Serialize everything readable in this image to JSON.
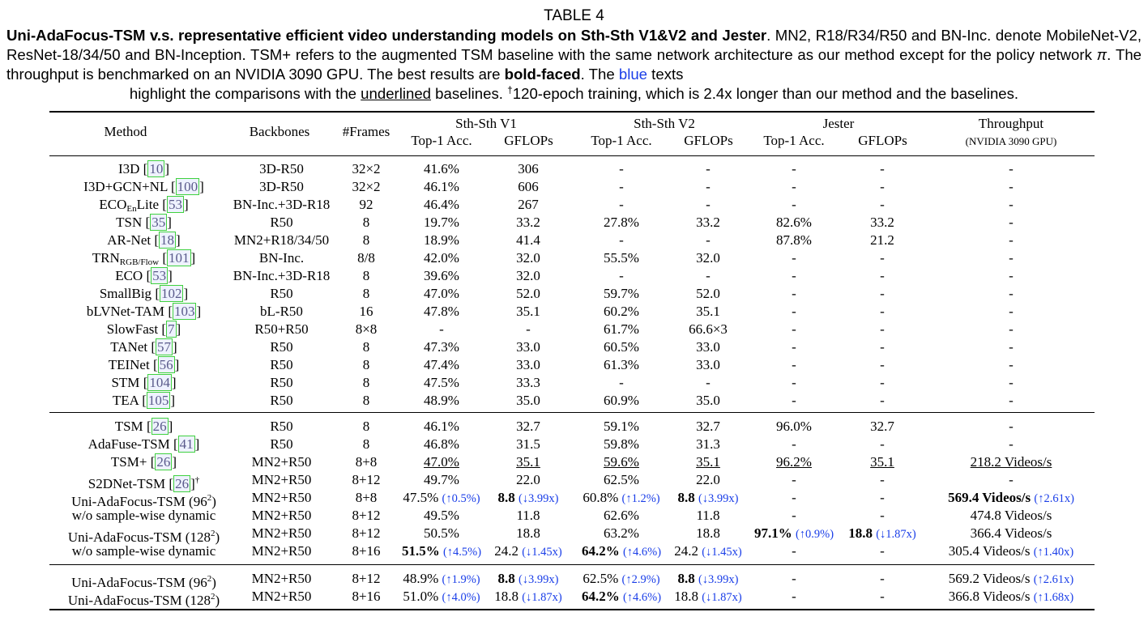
{
  "table_label": "TABLE 4",
  "caption": {
    "bold_lead": "Uni-AdaFocus-TSM v.s. representative efficient video understanding models on Sth-Sth V1&V2 and Jester",
    "p1": ". MN2, R18/R34/R50 and BN-Inc. denote MobileNet-V2, ResNet-18/34/50 and BN-Inception. TSM+ refers to the augmented TSM baseline with the same network architecture as our method except for the policy network ",
    "pi": "π",
    "p2": ". The throughput is benchmarked on an NVIDIA 3090 GPU. The best results are ",
    "bold_faced": "bold-faced",
    "p3": ". The ",
    "blue_word": "blue",
    "p4": " texts",
    "line4a": "highlight the comparisons with the ",
    "underlined": "underlined",
    "line4b": " baselines. ",
    "dagger": "†",
    "line4c": "120-epoch training, which is 2.4x longer than our method and the baselines."
  },
  "header": {
    "method": "Method",
    "backbones": "Backbones",
    "frames": "#Frames",
    "groups": [
      "Sth-Sth V1",
      "Sth-Sth V2",
      "Jester",
      "Throughput"
    ],
    "throughput_sub": "(NVIDIA 3090 GPU)",
    "top1": "Top-1 Acc.",
    "gflops": "GFLOPs"
  },
  "sections": [
    {
      "rows": [
        {
          "m": "I3D",
          "sub": "",
          "post": "",
          "ref": "10",
          "bb": "3D-R50",
          "fr": "32×2",
          "c": [
            [
              "41.6%"
            ],
            [
              "306"
            ],
            [
              "-"
            ],
            [
              "-"
            ],
            [
              "-"
            ],
            [
              "-"
            ],
            [
              "-"
            ]
          ]
        },
        {
          "m": "I3D+GCN+NL",
          "sub": "",
          "post": "",
          "ref": "100",
          "bb": "3D-R50",
          "fr": "32×2",
          "c": [
            [
              "46.1%"
            ],
            [
              "606"
            ],
            [
              "-"
            ],
            [
              "-"
            ],
            [
              "-"
            ],
            [
              "-"
            ],
            [
              "-"
            ]
          ]
        },
        {
          "m": "ECO",
          "sub": "En",
          "post": "Lite",
          "ref": "53",
          "bb": "BN-Inc.+3D-R18",
          "fr": "92",
          "c": [
            [
              "46.4%"
            ],
            [
              "267"
            ],
            [
              "-"
            ],
            [
              "-"
            ],
            [
              "-"
            ],
            [
              "-"
            ],
            [
              "-"
            ]
          ]
        },
        {
          "m": "TSN",
          "sub": "",
          "post": "",
          "ref": "35",
          "bb": "R50",
          "fr": "8",
          "c": [
            [
              "19.7%"
            ],
            [
              "33.2"
            ],
            [
              "27.8%"
            ],
            [
              "33.2"
            ],
            [
              "82.6%"
            ],
            [
              "33.2"
            ],
            [
              "-"
            ]
          ]
        },
        {
          "m": "AR-Net",
          "sub": "",
          "post": "",
          "ref": "18",
          "bb": "MN2+R18/34/50",
          "fr": "8",
          "c": [
            [
              "18.9%"
            ],
            [
              "41.4"
            ],
            [
              "-"
            ],
            [
              "-"
            ],
            [
              "87.8%"
            ],
            [
              "21.2"
            ],
            [
              "-"
            ]
          ]
        },
        {
          "m": "TRN",
          "sub": "RGB/Flow",
          "post": "",
          "ref": "101",
          "bb": "BN-Inc.",
          "fr": "8/8",
          "c": [
            [
              "42.0%"
            ],
            [
              "32.0"
            ],
            [
              "55.5%"
            ],
            [
              "32.0"
            ],
            [
              "-"
            ],
            [
              "-"
            ],
            [
              "-"
            ]
          ]
        },
        {
          "m": "ECO",
          "sub": "",
          "post": "",
          "ref": "53",
          "bb": "BN-Inc.+3D-R18",
          "fr": "8",
          "c": [
            [
              "39.6%"
            ],
            [
              "32.0"
            ],
            [
              "-"
            ],
            [
              "-"
            ],
            [
              "-"
            ],
            [
              "-"
            ],
            [
              "-"
            ]
          ]
        },
        {
          "m": "SmallBig",
          "sub": "",
          "post": "",
          "ref": "102",
          "bb": "R50",
          "fr": "8",
          "c": [
            [
              "47.0%"
            ],
            [
              "52.0"
            ],
            [
              "59.7%"
            ],
            [
              "52.0"
            ],
            [
              "-"
            ],
            [
              "-"
            ],
            [
              "-"
            ]
          ]
        },
        {
          "m": "bLVNet-TAM",
          "sub": "",
          "post": "",
          "ref": "103",
          "bb": "bL-R50",
          "fr": "16",
          "c": [
            [
              "47.8%"
            ],
            [
              "35.1"
            ],
            [
              "60.2%"
            ],
            [
              "35.1"
            ],
            [
              "-"
            ],
            [
              "-"
            ],
            [
              "-"
            ]
          ]
        },
        {
          "m": "SlowFast",
          "sub": "",
          "post": "",
          "ref": "7",
          "bb": "R50+R50",
          "fr": "8×8",
          "c": [
            [
              "-"
            ],
            [
              "-"
            ],
            [
              "61.7%"
            ],
            [
              "66.6×3"
            ],
            [
              "-"
            ],
            [
              "-"
            ],
            [
              "-"
            ]
          ]
        },
        {
          "m": "TANet",
          "sub": "",
          "post": "",
          "ref": "57",
          "bb": "R50",
          "fr": "8",
          "c": [
            [
              "47.3%"
            ],
            [
              "33.0"
            ],
            [
              "60.5%"
            ],
            [
              "33.0"
            ],
            [
              "-"
            ],
            [
              "-"
            ],
            [
              "-"
            ]
          ]
        },
        {
          "m": "TEINet",
          "sub": "",
          "post": "",
          "ref": "56",
          "bb": "R50",
          "fr": "8",
          "c": [
            [
              "47.4%"
            ],
            [
              "33.0"
            ],
            [
              "61.3%"
            ],
            [
              "33.0"
            ],
            [
              "-"
            ],
            [
              "-"
            ],
            [
              "-"
            ]
          ]
        },
        {
          "m": "STM",
          "sub": "",
          "post": "",
          "ref": "104",
          "bb": "R50",
          "fr": "8",
          "c": [
            [
              "47.5%"
            ],
            [
              "33.3"
            ],
            [
              "-"
            ],
            [
              "-"
            ],
            [
              "-"
            ],
            [
              "-"
            ],
            [
              "-"
            ]
          ]
        },
        {
          "m": "TEA",
          "sub": "",
          "post": "",
          "ref": "105",
          "bb": "R50",
          "fr": "8",
          "c": [
            [
              "48.9%"
            ],
            [
              "35.0"
            ],
            [
              "60.9%"
            ],
            [
              "35.0"
            ],
            [
              "-"
            ],
            [
              "-"
            ],
            [
              "-"
            ]
          ]
        }
      ]
    },
    {
      "rows": [
        {
          "m": "TSM",
          "sub": "",
          "post": "",
          "ref": "26",
          "bb": "R50",
          "fr": "8",
          "c": [
            [
              "46.1%"
            ],
            [
              "32.7"
            ],
            [
              "59.1%"
            ],
            [
              "32.7"
            ],
            [
              "96.0%"
            ],
            [
              "32.7"
            ],
            [
              "-"
            ]
          ]
        },
        {
          "m": "AdaFuse-TSM",
          "sub": "",
          "post": "",
          "ref": "41",
          "bb": "R50",
          "fr": "8",
          "c": [
            [
              "46.8%"
            ],
            [
              "31.5"
            ],
            [
              "59.8%"
            ],
            [
              "31.3"
            ],
            [
              "-"
            ],
            [
              "-"
            ],
            [
              "-"
            ]
          ]
        },
        {
          "m": "TSM+",
          "sub": "",
          "post": "",
          "ref": "26",
          "bb": "MN2+R50",
          "fr": "8+8",
          "c": [
            [
              "47.0%",
              "",
              "u"
            ],
            [
              "35.1",
              "",
              "u"
            ],
            [
              "59.6%",
              "",
              "u"
            ],
            [
              "35.1",
              "",
              "u"
            ],
            [
              "96.2%",
              "",
              "u"
            ],
            [
              "35.1",
              "",
              "u"
            ],
            [
              "218.2 Videos/s",
              "",
              "u"
            ]
          ]
        },
        {
          "m": "S2DNet-TSM",
          "sub": "",
          "post": "",
          "ref": "26",
          "dag": "†",
          "bb": "MN2+R50",
          "fr": "8+12",
          "c": [
            [
              "49.7%"
            ],
            [
              "22.0"
            ],
            [
              "62.5%"
            ],
            [
              "22.0"
            ],
            [
              "-"
            ],
            [
              "-"
            ],
            [
              "-"
            ]
          ]
        },
        {
          "m": "Uni-AdaFocus-TSM (96",
          "sq": "2",
          "tail": ")",
          "bb": "MN2+R50",
          "fr": "8+8",
          "c": [
            [
              "47.5%",
              "(↑0.5%)"
            ],
            [
              "8.8",
              "(↓3.99x)",
              "b"
            ],
            [
              "60.8%",
              "(↑1.2%)"
            ],
            [
              "8.8",
              "(↓3.99x)",
              "b"
            ],
            [
              "-"
            ],
            [
              "-"
            ],
            [
              "569.4 Videos/s",
              "(↑2.61x)",
              "b"
            ]
          ]
        },
        {
          "m": "w/o sample-wise dynamic",
          "bb": "MN2+R50",
          "fr": "8+12",
          "c": [
            [
              "49.5%"
            ],
            [
              "11.8"
            ],
            [
              "62.6%"
            ],
            [
              "11.8"
            ],
            [
              "-"
            ],
            [
              "-"
            ],
            [
              "474.8 Videos/s"
            ]
          ]
        },
        {
          "m": "Uni-AdaFocus-TSM (128",
          "sq": "2",
          "tail": ")",
          "bb": "MN2+R50",
          "fr": "8+12",
          "c": [
            [
              "50.5%"
            ],
            [
              "18.8"
            ],
            [
              "63.2%"
            ],
            [
              "18.8"
            ],
            [
              "97.1%",
              "(↑0.9%)",
              "b"
            ],
            [
              "18.8",
              "(↓1.87x)",
              "b"
            ],
            [
              "366.4 Videos/s"
            ]
          ]
        },
        {
          "m": "w/o sample-wise dynamic",
          "bb": "MN2+R50",
          "fr": "8+16",
          "c": [
            [
              "51.5%",
              "(↑4.5%)",
              "b"
            ],
            [
              "24.2",
              "(↓1.45x)"
            ],
            [
              "64.2%",
              "(↑4.6%)",
              "b"
            ],
            [
              "24.2",
              "(↓1.45x)"
            ],
            [
              "-"
            ],
            [
              "-"
            ],
            [
              "305.4 Videos/s",
              "(↑1.40x)"
            ]
          ]
        }
      ]
    },
    {
      "rows": [
        {
          "m": "Uni-AdaFocus-TSM (96",
          "sq": "2",
          "tail": ")",
          "bb": "MN2+R50",
          "fr": "8+12",
          "c": [
            [
              "48.9%",
              "(↑1.9%)"
            ],
            [
              "8.8",
              "(↓3.99x)",
              "b"
            ],
            [
              "62.5%",
              "(↑2.9%)"
            ],
            [
              "8.8",
              "(↓3.99x)",
              "b"
            ],
            [
              "-"
            ],
            [
              "-"
            ],
            [
              "569.2 Videos/s",
              "(↑2.61x)"
            ]
          ]
        },
        {
          "m": "Uni-AdaFocus-TSM (128",
          "sq": "2",
          "tail": ")",
          "bb": "MN2+R50",
          "fr": "8+16",
          "c": [
            [
              "51.0%",
              "(↑4.0%)"
            ],
            [
              "18.8",
              "(↓1.87x)"
            ],
            [
              "64.2%",
              "(↑4.6%)",
              "b"
            ],
            [
              "18.8",
              "(↓1.87x)"
            ],
            [
              "-"
            ],
            [
              "-"
            ],
            [
              "366.8 Videos/s",
              "(↑1.68x)"
            ]
          ]
        }
      ]
    }
  ]
}
